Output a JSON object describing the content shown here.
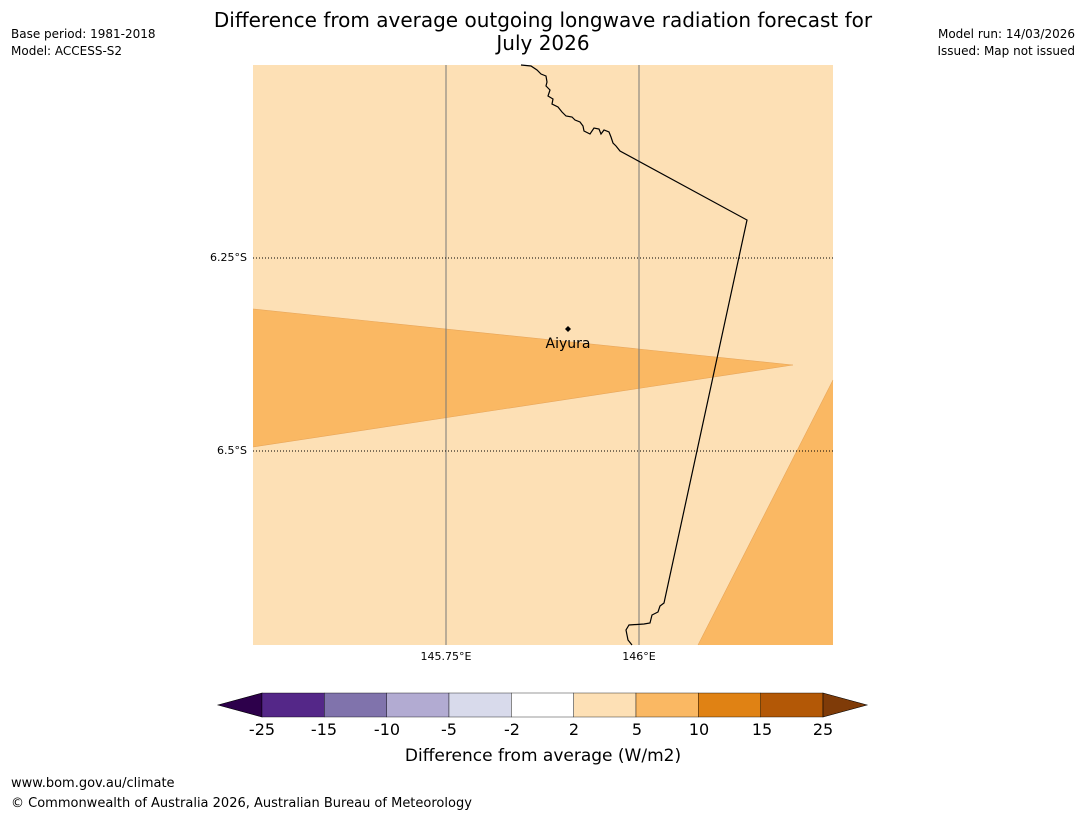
{
  "header": {
    "title_line1": "Difference from average outgoing longwave radiation forecast for",
    "title_line2": "July 2026",
    "base_period": "Base period: 1981-2018",
    "model": "Model: ACCESS-S2",
    "model_run": "Model run: 14/03/2026",
    "issued": "Issued: Map not issued"
  },
  "map": {
    "lat_labels": [
      "6.25°S",
      "6.5°S"
    ],
    "lon_labels": [
      "145.75°E",
      "146°E"
    ],
    "place": {
      "name": "Aiyura",
      "lat": -6.34,
      "lon": 145.91
    },
    "extent": {
      "lon_min": 145.5,
      "lon_max": 146.25,
      "lat_min": -6.75,
      "lat_max": -6.0
    },
    "background_category": "2 to 5",
    "highlight_category": "5 to 10"
  },
  "colorbar": {
    "ticks": [
      "-25",
      "-15",
      "-10",
      "-5",
      "-2",
      "2",
      "5",
      "10",
      "15",
      "25"
    ],
    "colors": {
      "under": "#2d004b",
      "bins": [
        "#542788",
        "#8073ac",
        "#b2abd2",
        "#d8daeb",
        "#ffffff",
        "#fde0b5",
        "#fab863",
        "#e08214",
        "#b35806"
      ],
      "over": "#7f3b08"
    },
    "caption": "Difference from average (W/m2)"
  },
  "footer": {
    "url": "www.bom.gov.au/climate",
    "copyright": "© Commonwealth of Australia 2026, Australian Bureau of Meteorology"
  }
}
